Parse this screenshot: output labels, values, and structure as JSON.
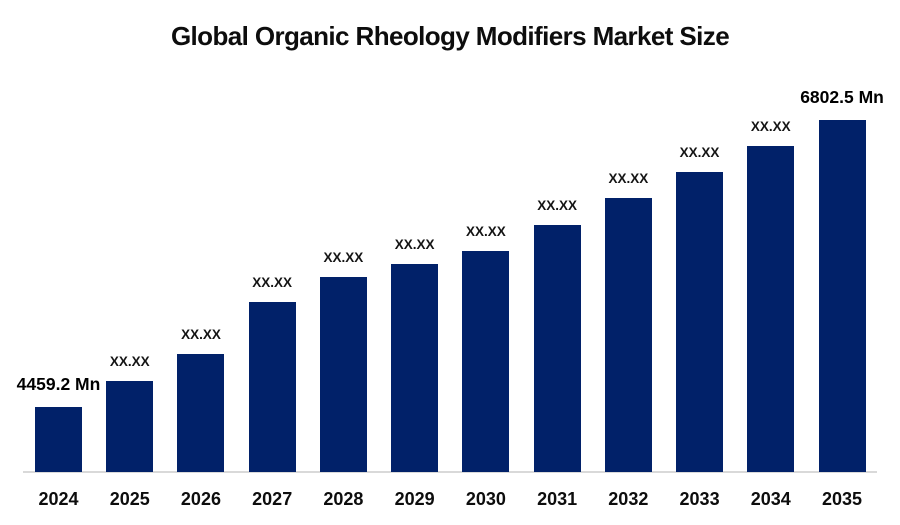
{
  "chart_data": {
    "type": "bar",
    "title": "Global Organic Rheology Modifiers Market Size",
    "unit": "Mn",
    "xlabel": "",
    "ylabel": "",
    "grid": false,
    "legend": "none",
    "bar_color": "#012169",
    "axis_line_color": "#d9d9d9",
    "categories": [
      "2024",
      "2025",
      "2026",
      "2027",
      "2028",
      "2029",
      "2030",
      "2031",
      "2032",
      "2033",
      "2034",
      "2035"
    ],
    "bar_labels": [
      "4459.2 Mn",
      "XX.XX",
      "XX.XX",
      "XX.XX",
      "XX.XX",
      "XX.XX",
      "XX.XX",
      "XX.XX",
      "XX.XX",
      "XX.XX",
      "XX.XX",
      "6802.5 Mn"
    ],
    "known_values": {
      "2024": 4459.2,
      "2035": 6802.5
    },
    "relative_heights": [
      65,
      91,
      118,
      170,
      195,
      208,
      221,
      247,
      274,
      300,
      326,
      352
    ]
  }
}
